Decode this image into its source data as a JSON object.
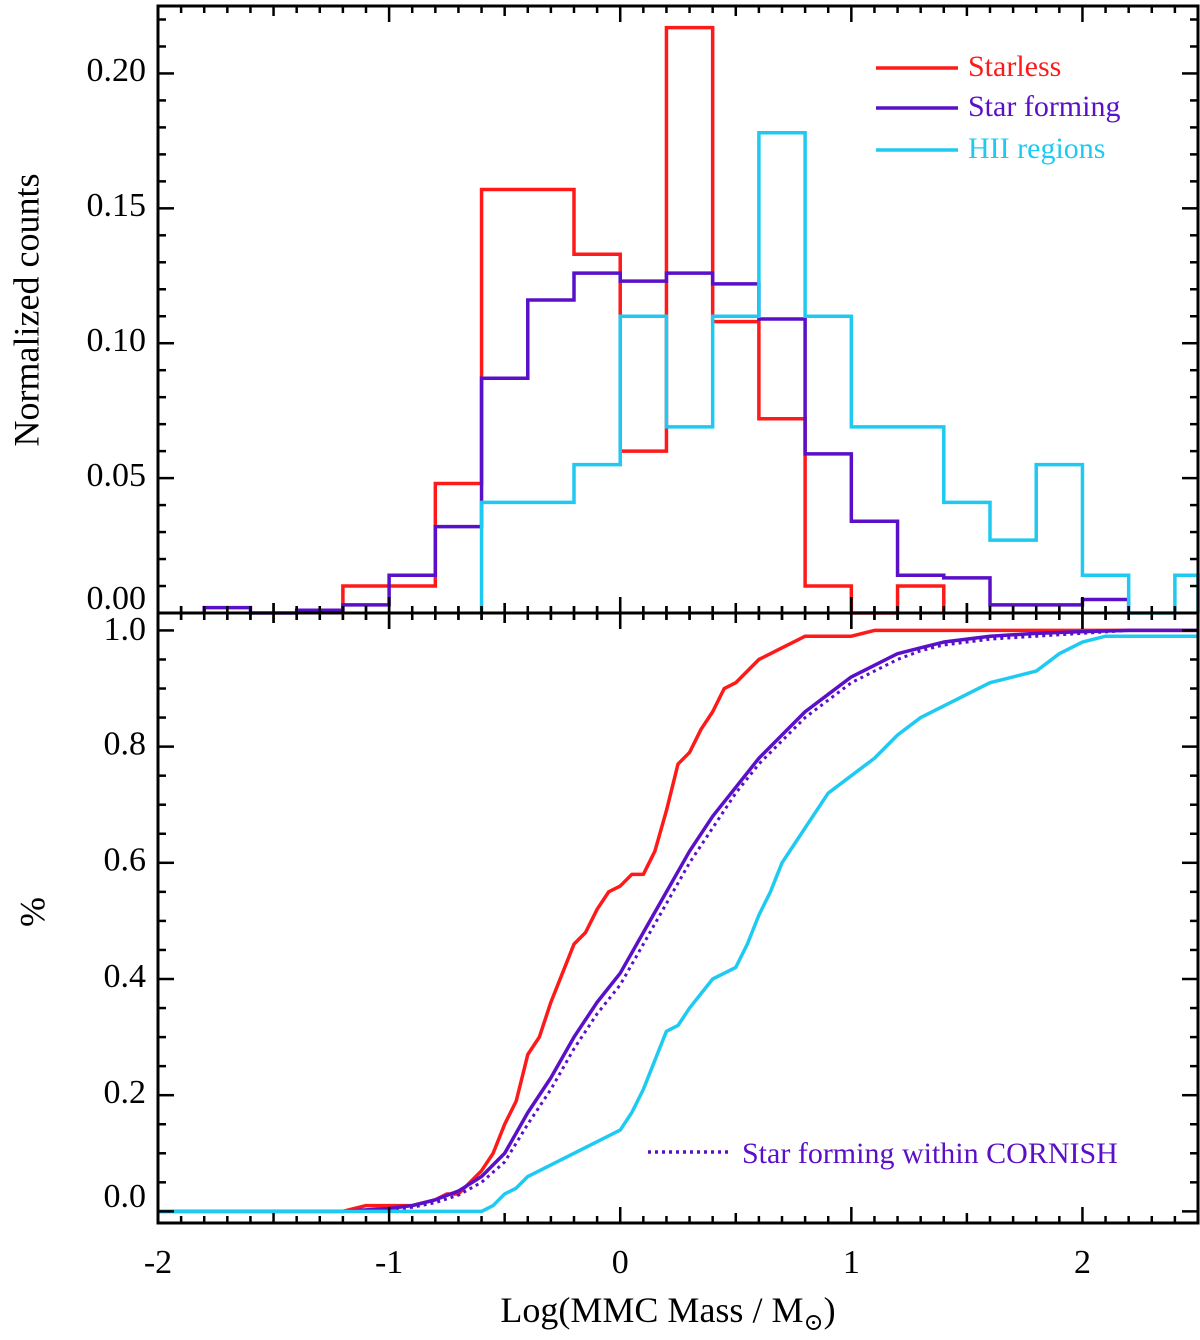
{
  "colors": {
    "starless": "#ff1a1a",
    "star_forming": "#5a10c8",
    "hii": "#1fcaf2",
    "axis": "#000000"
  },
  "chart_data": [
    {
      "type": "histogram",
      "panel": "top",
      "ylabel": "Normalized counts",
      "xlim": [
        -2,
        2.5
      ],
      "ylim": [
        0,
        0.225
      ],
      "ytick_labels": [
        "0.00",
        "0.05",
        "0.10",
        "0.15",
        "0.20"
      ],
      "bin_width": 0.2,
      "legend_position": "top-right",
      "series": [
        {
          "name": "Starless",
          "color_key": "starless",
          "bin_edges": [
            -1.2,
            -1.0,
            -0.8,
            -0.6,
            -0.4,
            -0.2,
            0.0,
            0.2,
            0.4,
            0.6,
            0.8,
            1.0,
            1.2,
            1.4
          ],
          "values": [
            0.01,
            0.01,
            0.048,
            0.157,
            0.157,
            0.133,
            0.06,
            0.217,
            0.108,
            0.072,
            0.01,
            0.0,
            0.01
          ]
        },
        {
          "name": "Star forming",
          "color_key": "star_forming",
          "bin_edges": [
            -1.8,
            -1.6,
            -1.4,
            -1.2,
            -1.0,
            -0.8,
            -0.6,
            -0.4,
            -0.2,
            0.0,
            0.2,
            0.4,
            0.6,
            0.8,
            1.0,
            1.2,
            1.4,
            1.6,
            1.8,
            2.0,
            2.2
          ],
          "values": [
            0.002,
            0.0,
            0.001,
            0.003,
            0.014,
            0.032,
            0.087,
            0.116,
            0.126,
            0.123,
            0.126,
            0.122,
            0.109,
            0.059,
            0.034,
            0.014,
            0.013,
            0.003,
            0.003,
            0.005
          ]
        },
        {
          "name": "HII regions",
          "color_key": "hii",
          "bin_edges": [
            -0.6,
            -0.4,
            -0.2,
            0.0,
            0.2,
            0.4,
            0.6,
            0.8,
            1.0,
            1.2,
            1.4,
            1.6,
            1.8,
            2.0,
            2.2,
            2.4,
            2.6
          ],
          "values": [
            0.041,
            0.041,
            0.055,
            0.11,
            0.069,
            0.11,
            0.178,
            0.11,
            0.069,
            0.069,
            0.041,
            0.027,
            0.055,
            0.014,
            0.0,
            0.014
          ]
        }
      ]
    },
    {
      "type": "line",
      "panel": "bottom",
      "xlabel": "Log(MMC Mass / M",
      "xlabel_sub": "⊙",
      "xlabel_close": ")",
      "ylabel": "%",
      "xlim": [
        -2,
        2.5
      ],
      "ylim": [
        -0.02,
        1.03
      ],
      "xticks": [
        -2,
        -1,
        0,
        1,
        2
      ],
      "xtick_labels": [
        "-2",
        "-1",
        "0",
        "1",
        "2"
      ],
      "ytick_labels": [
        "0.0",
        "0.2",
        "0.4",
        "0.6",
        "0.8",
        "1.0"
      ],
      "legend_position": "bottom-right",
      "series": [
        {
          "name": "Starless",
          "color_key": "starless",
          "style": "solid",
          "x": [
            -2.0,
            -1.2,
            -1.1,
            -0.9,
            -0.8,
            -0.75,
            -0.7,
            -0.65,
            -0.6,
            -0.55,
            -0.5,
            -0.45,
            -0.4,
            -0.35,
            -0.3,
            -0.25,
            -0.2,
            -0.15,
            -0.1,
            -0.05,
            0.0,
            0.05,
            0.1,
            0.15,
            0.2,
            0.25,
            0.3,
            0.35,
            0.4,
            0.45,
            0.5,
            0.55,
            0.6,
            0.65,
            0.7,
            0.75,
            0.8,
            0.85,
            0.9,
            1.0,
            1.1,
            1.2,
            1.3,
            2.5
          ],
          "y": [
            0.0,
            0.0,
            0.01,
            0.01,
            0.02,
            0.03,
            0.03,
            0.05,
            0.07,
            0.1,
            0.15,
            0.19,
            0.27,
            0.3,
            0.36,
            0.41,
            0.46,
            0.48,
            0.52,
            0.55,
            0.56,
            0.58,
            0.58,
            0.62,
            0.69,
            0.77,
            0.79,
            0.83,
            0.86,
            0.9,
            0.91,
            0.93,
            0.95,
            0.96,
            0.97,
            0.98,
            0.99,
            0.99,
            0.99,
            0.99,
            1.0,
            1.0,
            1.0,
            1.0
          ]
        },
        {
          "name": "Star forming",
          "color_key": "star_forming",
          "style": "solid",
          "x": [
            -2.0,
            -1.2,
            -1.0,
            -0.9,
            -0.8,
            -0.7,
            -0.6,
            -0.5,
            -0.4,
            -0.3,
            -0.2,
            -0.1,
            0.0,
            0.1,
            0.2,
            0.3,
            0.4,
            0.5,
            0.6,
            0.7,
            0.8,
            0.9,
            1.0,
            1.1,
            1.2,
            1.3,
            1.4,
            1.6,
            1.8,
            2.0,
            2.2,
            2.5
          ],
          "y": [
            0.0,
            0.0,
            0.005,
            0.01,
            0.02,
            0.035,
            0.06,
            0.1,
            0.17,
            0.23,
            0.3,
            0.36,
            0.41,
            0.48,
            0.55,
            0.62,
            0.68,
            0.73,
            0.78,
            0.82,
            0.86,
            0.89,
            0.92,
            0.94,
            0.96,
            0.97,
            0.98,
            0.99,
            0.995,
            0.998,
            1.0,
            1.0
          ]
        },
        {
          "name": "Star forming within CORNISH",
          "color_key": "star_forming",
          "style": "dotted",
          "x": [
            -2.0,
            -1.2,
            -1.0,
            -0.9,
            -0.8,
            -0.7,
            -0.6,
            -0.5,
            -0.4,
            -0.3,
            -0.2,
            -0.1,
            0.0,
            0.1,
            0.2,
            0.3,
            0.4,
            0.5,
            0.6,
            0.7,
            0.8,
            0.9,
            1.0,
            1.1,
            1.2,
            1.3,
            1.4,
            1.6,
            1.8,
            2.0,
            2.2,
            2.5
          ],
          "y": [
            0.0,
            0.0,
            0.003,
            0.007,
            0.015,
            0.028,
            0.05,
            0.085,
            0.15,
            0.21,
            0.28,
            0.34,
            0.39,
            0.46,
            0.53,
            0.6,
            0.66,
            0.72,
            0.77,
            0.81,
            0.85,
            0.88,
            0.91,
            0.93,
            0.95,
            0.965,
            0.975,
            0.985,
            0.99,
            0.995,
            1.0,
            1.0
          ]
        },
        {
          "name": "HII regions",
          "color_key": "hii",
          "style": "solid",
          "x": [
            -2.0,
            -0.6,
            -0.55,
            -0.5,
            -0.45,
            -0.4,
            -0.3,
            -0.2,
            -0.1,
            0.0,
            0.05,
            0.1,
            0.15,
            0.2,
            0.25,
            0.3,
            0.4,
            0.5,
            0.55,
            0.6,
            0.65,
            0.7,
            0.75,
            0.8,
            0.9,
            1.0,
            1.1,
            1.2,
            1.3,
            1.4,
            1.5,
            1.6,
            1.7,
            1.8,
            1.9,
            2.0,
            2.1,
            2.2,
            2.3,
            2.5
          ],
          "y": [
            0.0,
            0.0,
            0.01,
            0.03,
            0.04,
            0.06,
            0.08,
            0.1,
            0.12,
            0.14,
            0.17,
            0.21,
            0.26,
            0.31,
            0.32,
            0.35,
            0.4,
            0.42,
            0.46,
            0.51,
            0.55,
            0.6,
            0.63,
            0.66,
            0.72,
            0.75,
            0.78,
            0.82,
            0.85,
            0.87,
            0.89,
            0.91,
            0.92,
            0.93,
            0.96,
            0.98,
            0.99,
            0.99,
            0.99,
            0.99
          ]
        }
      ]
    }
  ]
}
